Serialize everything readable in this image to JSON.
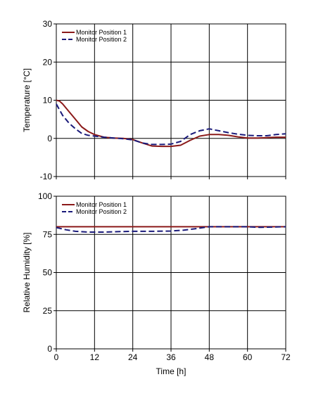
{
  "colors": {
    "series1": "#8B1A1A",
    "series2": "#1A1A7A",
    "grid": "#000000",
    "background": "#ffffff"
  },
  "chart_data": [
    {
      "type": "line",
      "title": "",
      "xlabel": "",
      "ylabel": "Temperature [°C]",
      "xlim": [
        0,
        72
      ],
      "ylim": [
        -10,
        30
      ],
      "xticks": [
        0,
        12,
        24,
        36,
        48,
        60,
        72
      ],
      "yticks": [
        -10,
        0,
        10,
        20,
        30
      ],
      "grid": true,
      "legend_position": "top-left",
      "series": [
        {
          "name": "Monitor Position 1",
          "style": "solid",
          "x": [
            0,
            1,
            2,
            4,
            6,
            8,
            10,
            12,
            15,
            18,
            21,
            24,
            27,
            30,
            33,
            36,
            39,
            42,
            45,
            48,
            51,
            54,
            57,
            60,
            63,
            66,
            69,
            72
          ],
          "y": [
            10,
            9.8,
            9,
            7,
            5,
            3,
            1.8,
            1.0,
            0.3,
            0.1,
            0,
            -0.3,
            -1.2,
            -2.0,
            -2.1,
            -2.1,
            -1.8,
            -0.5,
            0.6,
            1.0,
            1.0,
            0.8,
            0.4,
            0.1,
            0.1,
            0.2,
            0.3,
            0.3
          ]
        },
        {
          "name": "Monitor Position 2",
          "style": "dashed",
          "x": [
            0,
            1,
            2,
            4,
            6,
            8,
            10,
            12,
            15,
            18,
            21,
            24,
            27,
            30,
            33,
            36,
            39,
            42,
            45,
            48,
            51,
            54,
            57,
            60,
            63,
            66,
            69,
            72
          ],
          "y": [
            9,
            7.5,
            6,
            4,
            2.5,
            1.3,
            0.8,
            0.6,
            0.3,
            0.1,
            -0.1,
            -0.4,
            -1.2,
            -1.6,
            -1.6,
            -1.5,
            -0.8,
            1.0,
            2.0,
            2.5,
            2.0,
            1.5,
            1.1,
            0.8,
            0.7,
            0.7,
            1.0,
            1.2
          ]
        }
      ]
    },
    {
      "type": "line",
      "title": "",
      "xlabel": "Time [h]",
      "ylabel": "Relative Humidity [%]",
      "xlim": [
        0,
        72
      ],
      "ylim": [
        0,
        100
      ],
      "xticks": [
        0,
        12,
        24,
        36,
        48,
        60,
        72
      ],
      "yticks": [
        0,
        25,
        50,
        75,
        100
      ],
      "grid": true,
      "legend_position": "top-left",
      "series": [
        {
          "name": "Monitor Position 1",
          "style": "solid",
          "x": [
            0,
            12,
            24,
            36,
            48,
            60,
            72
          ],
          "y": [
            80,
            80,
            80,
            80,
            80,
            80,
            80
          ]
        },
        {
          "name": "Monitor Position 2",
          "style": "dashed",
          "x": [
            0,
            3,
            6,
            10,
            15,
            20,
            24,
            30,
            36,
            40,
            44,
            48,
            52,
            56,
            60,
            64,
            68,
            72
          ],
          "y": [
            79.5,
            78,
            77,
            76.5,
            76.5,
            76.8,
            77,
            77,
            77.2,
            77.8,
            78.8,
            80,
            80,
            80,
            80,
            79.6,
            79.8,
            80
          ]
        }
      ]
    }
  ]
}
